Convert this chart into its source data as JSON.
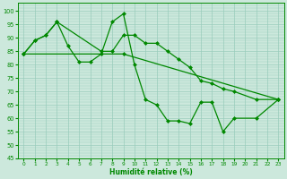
{
  "xlabel": "Humidité relative (%)",
  "xlim": [
    -0.5,
    23.5
  ],
  "ylim": [
    45,
    103
  ],
  "yticks": [
    45,
    50,
    55,
    60,
    65,
    70,
    75,
    80,
    85,
    90,
    95,
    100
  ],
  "xticks": [
    0,
    1,
    2,
    3,
    4,
    5,
    6,
    7,
    8,
    9,
    10,
    11,
    12,
    13,
    14,
    15,
    16,
    17,
    18,
    19,
    20,
    21,
    22,
    23
  ],
  "background_color": "#cce8dc",
  "grid_color": "#99ccbb",
  "line_color": "#008800",
  "series": [
    {
      "x": [
        0,
        1,
        2,
        3,
        4,
        5,
        6,
        7,
        8,
        9,
        10,
        11,
        12,
        13,
        14,
        15,
        16,
        17,
        18,
        19,
        21,
        23
      ],
      "y": [
        84,
        89,
        91,
        96,
        87,
        81,
        81,
        84,
        96,
        99,
        80,
        67,
        65,
        59,
        59,
        58,
        66,
        66,
        55,
        60,
        60,
        67
      ]
    },
    {
      "x": [
        0,
        1,
        2,
        3,
        7,
        8,
        9,
        10,
        11,
        12,
        13,
        14,
        15,
        16,
        17,
        18,
        19,
        21,
        23
      ],
      "y": [
        84,
        89,
        91,
        96,
        85,
        85,
        91,
        91,
        88,
        88,
        85,
        82,
        79,
        74,
        73,
        71,
        70,
        67,
        67
      ]
    },
    {
      "x": [
        0,
        9,
        23
      ],
      "y": [
        84,
        84,
        67
      ]
    }
  ],
  "marker": "D",
  "markersize": 2.5,
  "linewidth": 0.9
}
